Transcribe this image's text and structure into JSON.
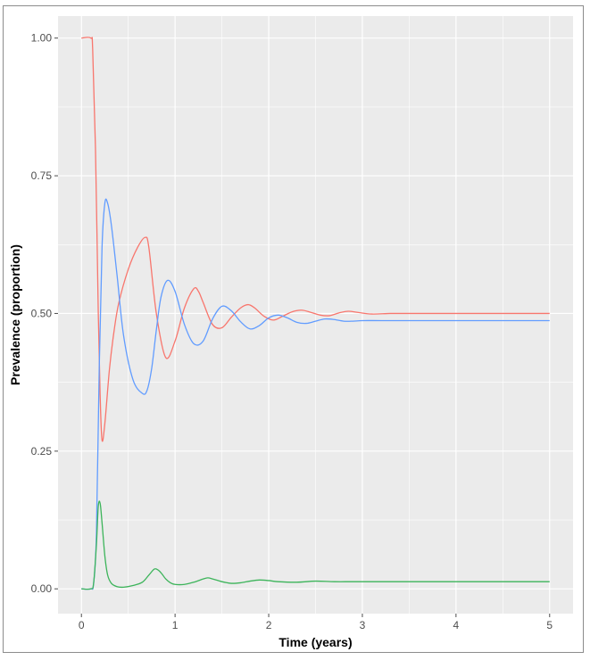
{
  "chart_data": {
    "type": "line",
    "title": "",
    "xlabel": "Time (years)",
    "ylabel": "Prevalence (proportion)",
    "xlim": [
      -0.25,
      5.25
    ],
    "ylim": [
      -0.045,
      1.04
    ],
    "x_ticks": [
      0,
      1,
      2,
      3,
      4,
      5
    ],
    "x_tick_labels": [
      "0",
      "1",
      "2",
      "3",
      "4",
      "5"
    ],
    "y_ticks": [
      0.0,
      0.25,
      0.5,
      0.75,
      1.0
    ],
    "y_tick_labels": [
      "0.00",
      "0.25",
      "0.50",
      "0.75",
      "1.00"
    ],
    "grid": true,
    "legend": "none",
    "colors": {
      "panel": "#ebebeb",
      "grid": "#ffffff"
    },
    "series": [
      {
        "color": "#f8766d",
        "x": [
          0,
          0.1,
          0.12,
          0.15,
          0.18,
          0.2,
          0.22,
          0.25,
          0.3,
          0.35,
          0.4,
          0.5,
          0.6,
          0.68,
          0.72,
          0.8,
          0.9,
          1.0,
          1.1,
          1.2,
          1.25,
          1.3,
          1.4,
          1.5,
          1.6,
          1.7,
          1.78,
          1.85,
          1.95,
          2.05,
          2.15,
          2.25,
          2.35,
          2.45,
          2.55,
          2.65,
          2.75,
          2.85,
          2.95,
          3.1,
          3.3,
          3.5,
          3.7,
          4.0,
          4.5,
          5.0
        ],
        "y": [
          1.0,
          1.0,
          0.98,
          0.8,
          0.5,
          0.35,
          0.27,
          0.3,
          0.4,
          0.47,
          0.52,
          0.58,
          0.62,
          0.638,
          0.62,
          0.5,
          0.42,
          0.45,
          0.51,
          0.545,
          0.54,
          0.52,
          0.48,
          0.474,
          0.493,
          0.51,
          0.516,
          0.51,
          0.495,
          0.488,
          0.495,
          0.503,
          0.506,
          0.502,
          0.497,
          0.496,
          0.501,
          0.504,
          0.502,
          0.499,
          0.5,
          0.5,
          0.5,
          0.5,
          0.5,
          0.5
        ]
      },
      {
        "color": "#619cff",
        "x": [
          0,
          0.1,
          0.13,
          0.16,
          0.19,
          0.22,
          0.25,
          0.28,
          0.32,
          0.38,
          0.45,
          0.55,
          0.65,
          0.7,
          0.75,
          0.8,
          0.85,
          0.92,
          1.0,
          1.1,
          1.2,
          1.3,
          1.4,
          1.5,
          1.6,
          1.7,
          1.8,
          1.9,
          2.0,
          2.1,
          2.2,
          2.3,
          2.4,
          2.5,
          2.6,
          2.7,
          2.8,
          2.9,
          3.0,
          3.2,
          3.5,
          4.0,
          4.5,
          5.0
        ],
        "y": [
          0.0,
          0.0,
          0.01,
          0.1,
          0.4,
          0.62,
          0.7,
          0.7,
          0.66,
          0.57,
          0.46,
          0.38,
          0.355,
          0.36,
          0.4,
          0.47,
          0.53,
          0.56,
          0.54,
          0.48,
          0.445,
          0.45,
          0.49,
          0.513,
          0.505,
          0.485,
          0.472,
          0.478,
          0.492,
          0.497,
          0.492,
          0.484,
          0.482,
          0.486,
          0.49,
          0.489,
          0.486,
          0.486,
          0.487,
          0.487,
          0.487,
          0.487,
          0.487,
          0.487
        ]
      },
      {
        "color": "#3cb45a",
        "x": [
          0,
          0.1,
          0.13,
          0.16,
          0.18,
          0.2,
          0.22,
          0.25,
          0.28,
          0.32,
          0.38,
          0.45,
          0.55,
          0.65,
          0.72,
          0.78,
          0.82,
          0.86,
          0.9,
          0.95,
          1.0,
          1.1,
          1.2,
          1.3,
          1.35,
          1.4,
          1.5,
          1.6,
          1.7,
          1.8,
          1.9,
          2.0,
          2.1,
          2.3,
          2.5,
          2.7,
          2.9,
          3.2,
          3.5,
          4.0,
          4.5,
          5.0
        ],
        "y": [
          0.0,
          0.0,
          0.01,
          0.08,
          0.15,
          0.155,
          0.12,
          0.06,
          0.025,
          0.01,
          0.004,
          0.003,
          0.006,
          0.012,
          0.025,
          0.036,
          0.034,
          0.027,
          0.018,
          0.011,
          0.008,
          0.008,
          0.012,
          0.018,
          0.02,
          0.018,
          0.013,
          0.01,
          0.011,
          0.014,
          0.016,
          0.015,
          0.013,
          0.012,
          0.014,
          0.013,
          0.013,
          0.013,
          0.013,
          0.013,
          0.013,
          0.013
        ]
      }
    ]
  }
}
